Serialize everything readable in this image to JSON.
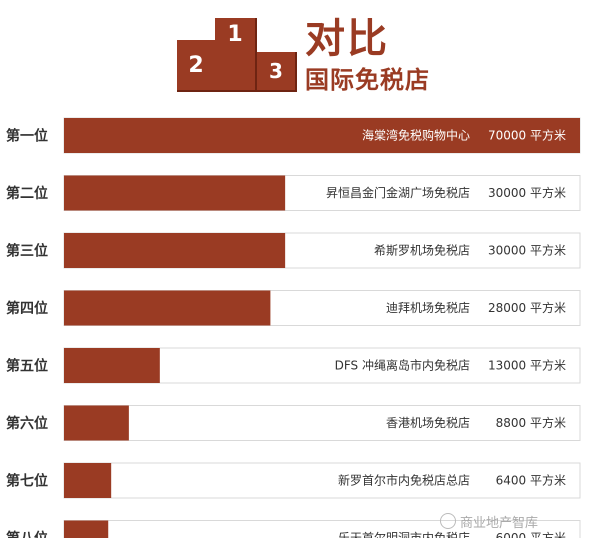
{
  "header": {
    "title": "对比",
    "subtitle": "国际免税店",
    "podium": [
      "1",
      "2",
      "3"
    ]
  },
  "colors": {
    "bar": "#9a3b23",
    "track_border": "#d9d9d9"
  },
  "chart_data": {
    "type": "bar",
    "orientation": "horizontal",
    "unit": "平方米",
    "xlim": [
      0,
      70000
    ],
    "grid": false,
    "rows": [
      {
        "rank": "第一位",
        "store": "海棠湾免税购物中心",
        "value": 70000,
        "value_label": "70000 平方米"
      },
      {
        "rank": "第二位",
        "store": "昇恒昌金门金湖广场免税店",
        "value": 30000,
        "value_label": "30000 平方米"
      },
      {
        "rank": "第三位",
        "store": "希斯罗机场免税店",
        "value": 30000,
        "value_label": "30000 平方米"
      },
      {
        "rank": "第四位",
        "store": "迪拜机场免税店",
        "value": 28000,
        "value_label": "28000 平方米"
      },
      {
        "rank": "第五位",
        "store": "DFS 冲绳离岛市内免税店",
        "value": 13000,
        "value_label": "13000 平方米"
      },
      {
        "rank": "第六位",
        "store": "香港机场免税店",
        "value": 8800,
        "value_label": "8800 平方米"
      },
      {
        "rank": "第七位",
        "store": "新罗首尔市内免税店总店",
        "value": 6400,
        "value_label": "6400 平方米"
      },
      {
        "rank": "第八位",
        "store": "乐天首尔明洞市内免税店",
        "value": 6000,
        "value_label": "6000 平方米"
      }
    ]
  },
  "watermark": "商业地产智库"
}
